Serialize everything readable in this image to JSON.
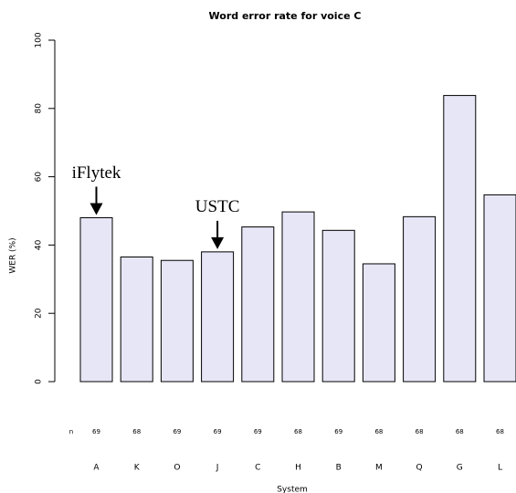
{
  "chart_data": {
    "type": "bar",
    "title": "Word error rate for voice C",
    "categories": [
      "A",
      "K",
      "O",
      "J",
      "C",
      "H",
      "B",
      "M",
      "Q",
      "G",
      "L"
    ],
    "values": [
      48,
      36.5,
      35.5,
      38,
      45.3,
      49.7,
      44.3,
      34.5,
      48.3,
      83.8,
      54.7
    ],
    "color": "#e6e6f7",
    "ylim": [
      0,
      100
    ],
    "yticks": [
      0,
      20,
      40,
      60,
      80,
      100
    ],
    "xlabel": "System",
    "ylabel": "WER (%)",
    "n_label": "n",
    "n_values": [
      69,
      68,
      69,
      69,
      69,
      68,
      69,
      68,
      68,
      68,
      68
    ],
    "annotations": [
      {
        "text": "iFlytek",
        "target": "A"
      },
      {
        "text": "USTC",
        "target": "J"
      }
    ]
  }
}
